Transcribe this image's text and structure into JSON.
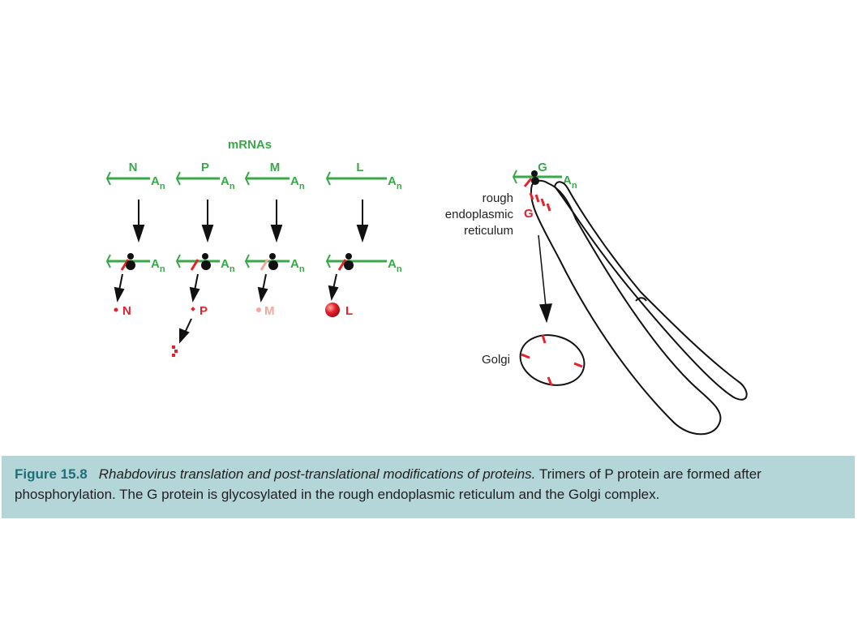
{
  "labels": {
    "mrnas": "mRNAs",
    "gene_n": "N",
    "gene_p": "P",
    "gene_m": "M",
    "gene_l": "L",
    "gene_g": "G",
    "poly_a_base": "A",
    "poly_a_sub": "n",
    "product_n": "N",
    "product_p": "P",
    "product_m": "M",
    "product_l": "L",
    "product_g": "G",
    "rough_er_line1": "rough",
    "rough_er_line2": "endoplasmic",
    "rough_er_line3": "reticulum",
    "golgi": "Golgi"
  },
  "colors": {
    "mrna_green": "#3aa84a",
    "protein_red": "#e8202a",
    "m_protein_pink": "#f2a99a",
    "ribosome_black": "#111111",
    "caption_bg": "#b5d6d8",
    "caption_title": "#1d6f78"
  },
  "caption": {
    "figure_label": "Figure 15.8",
    "italic_title": "Rhabdovirus translation and post-translational modifications of proteins.",
    "body": " Trimers of P protein are formed after phosphorylation. The G protein is glycosylated in the rough endoplasmic reticulum and the Golgi complex."
  }
}
